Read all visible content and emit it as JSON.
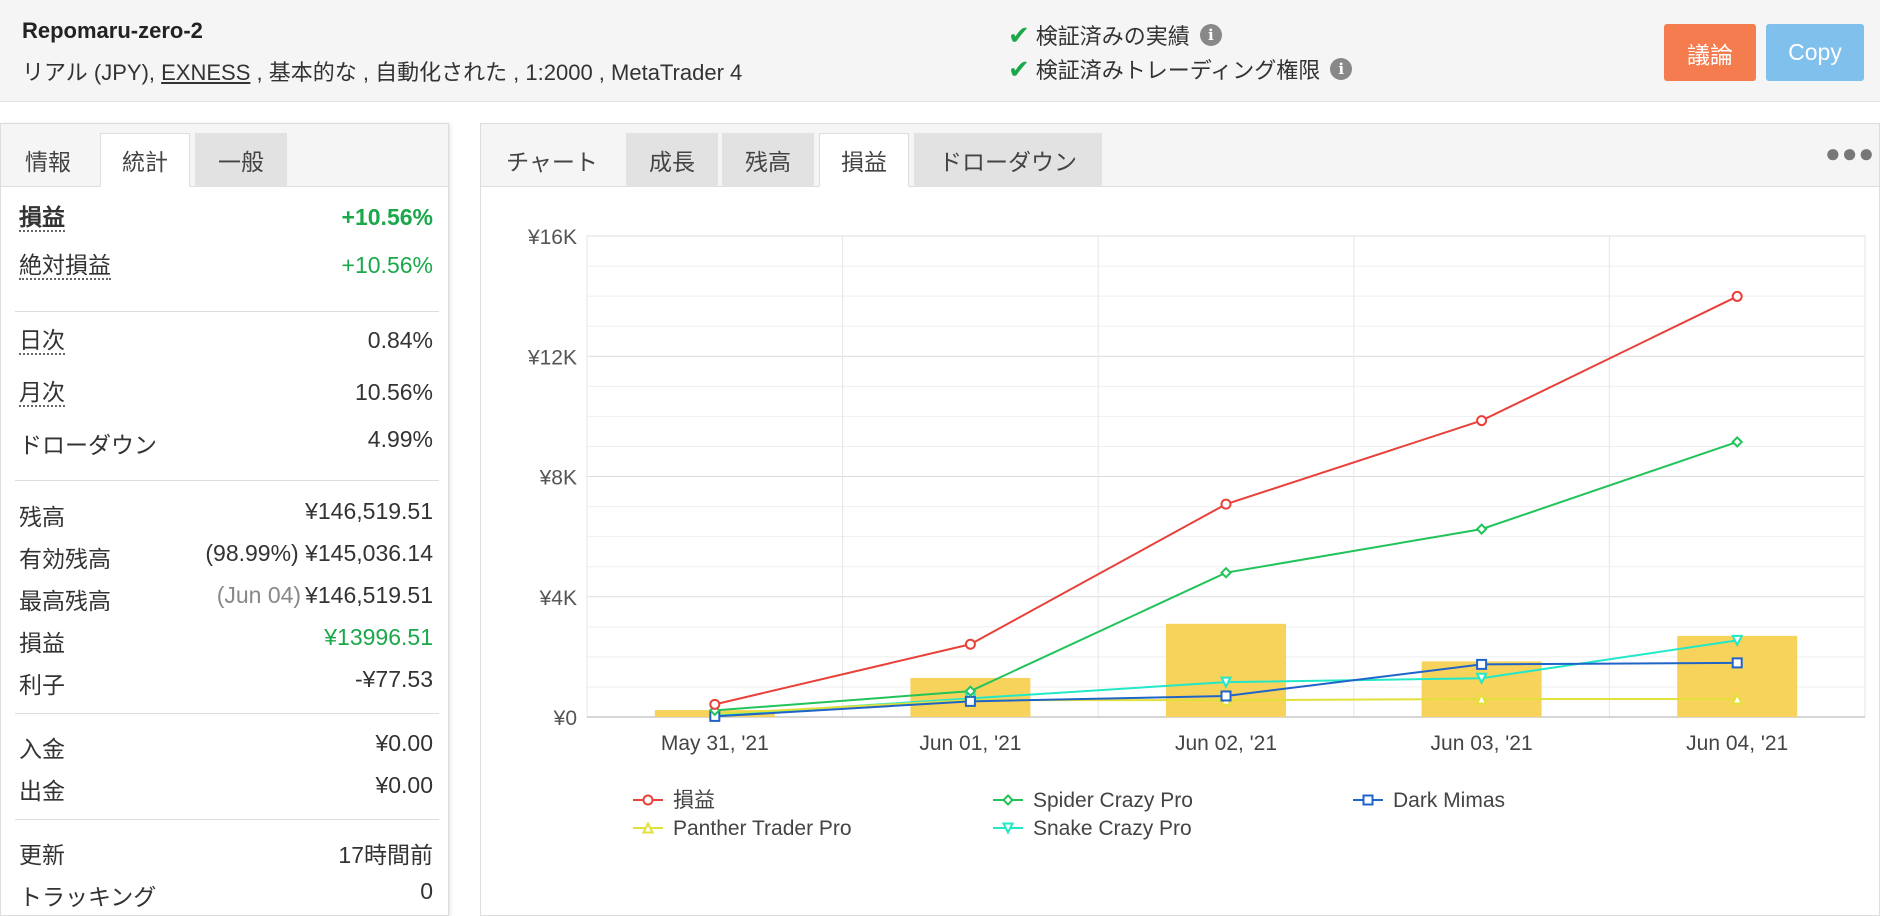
{
  "header": {
    "account_name": "Repomaru-zero-2",
    "meta_prefix": "リアル (JPY), ",
    "broker": "EXNESS",
    "meta_suffix": " , 基本的な , 自動化された , 1:2000 , MetaTrader 4",
    "verified_track_record": "検証済みの実績",
    "verified_trading_privileges": "検証済みトレーディング権限",
    "discuss_label": "議論",
    "copy_label": "Copy"
  },
  "left_tabs": [
    "情報",
    "統計",
    "一般"
  ],
  "stats": {
    "gain_label": "損益",
    "gain_value": "+10.56%",
    "abs_gain_label": "絶対損益",
    "abs_gain_value": "+10.56%",
    "daily_label": "日次",
    "daily_value": "0.84%",
    "monthly_label": "月次",
    "monthly_value": "10.56%",
    "drawdown_label": "ドローダウン",
    "drawdown_value": "4.99%",
    "balance_label": "残高",
    "balance_value": "¥146,519.51",
    "equity_label": "有効残高",
    "equity_pct": "(98.99%)",
    "equity_value": "¥145,036.14",
    "highest_label": "最高残高",
    "highest_date": "(Jun 04)",
    "highest_value": "¥146,519.51",
    "profit_label": "損益",
    "profit_value": "¥13996.51",
    "interest_label": "利子",
    "interest_value": "-¥77.53",
    "deposits_label": "入金",
    "deposits_value": "¥0.00",
    "withdrawals_label": "出金",
    "withdrawals_value": "¥0.00",
    "updated_label": "更新",
    "updated_value": "17時間前",
    "tracking_label": "トラッキング",
    "tracking_value": "0"
  },
  "right_tabs": [
    "チャート",
    "成長",
    "残高",
    "損益",
    "ドローダウン"
  ],
  "more_icon": "more-horizontal-icon",
  "colors": {
    "gain": "#1aa84a",
    "discuss": "#f47c4e",
    "copy": "#7fc0ec",
    "bars": "#f7d35c"
  },
  "chart_data": {
    "type": "line",
    "categories": [
      "May 31, '21",
      "Jun 01, '21",
      "Jun 02, '21",
      "Jun 03, '21",
      "Jun 04, '21"
    ],
    "y_ticks": [
      "¥0",
      "¥4K",
      "¥8K",
      "¥12K",
      "¥16K"
    ],
    "ylim": [
      0,
      16000
    ],
    "bars": [
      230,
      1300,
      3100,
      1850,
      2700
    ],
    "series": [
      {
        "name": "損益",
        "color": "#e8413a",
        "marker": "circle",
        "values": [
          420,
          2420,
          7080,
          9860,
          13990
        ]
      },
      {
        "name": "Spider Crazy Pro",
        "color": "#22c35a",
        "marker": "diamond",
        "values": [
          220,
          860,
          4800,
          6250,
          9150
        ]
      },
      {
        "name": "Dark Mimas",
        "color": "#2064c8",
        "marker": "square",
        "values": [
          20,
          520,
          700,
          1750,
          1800
        ]
      },
      {
        "name": "Panther Trader Pro",
        "color": "#e2e03a",
        "marker": "triangle-up",
        "values": [
          110,
          560,
          560,
          600,
          600
        ]
      },
      {
        "name": "Snake Crazy Pro",
        "color": "#22e8c8",
        "marker": "triangle-down",
        "values": [
          60,
          620,
          1160,
          1290,
          2550
        ]
      }
    ],
    "grid": true,
    "legend_position": "bottom"
  }
}
